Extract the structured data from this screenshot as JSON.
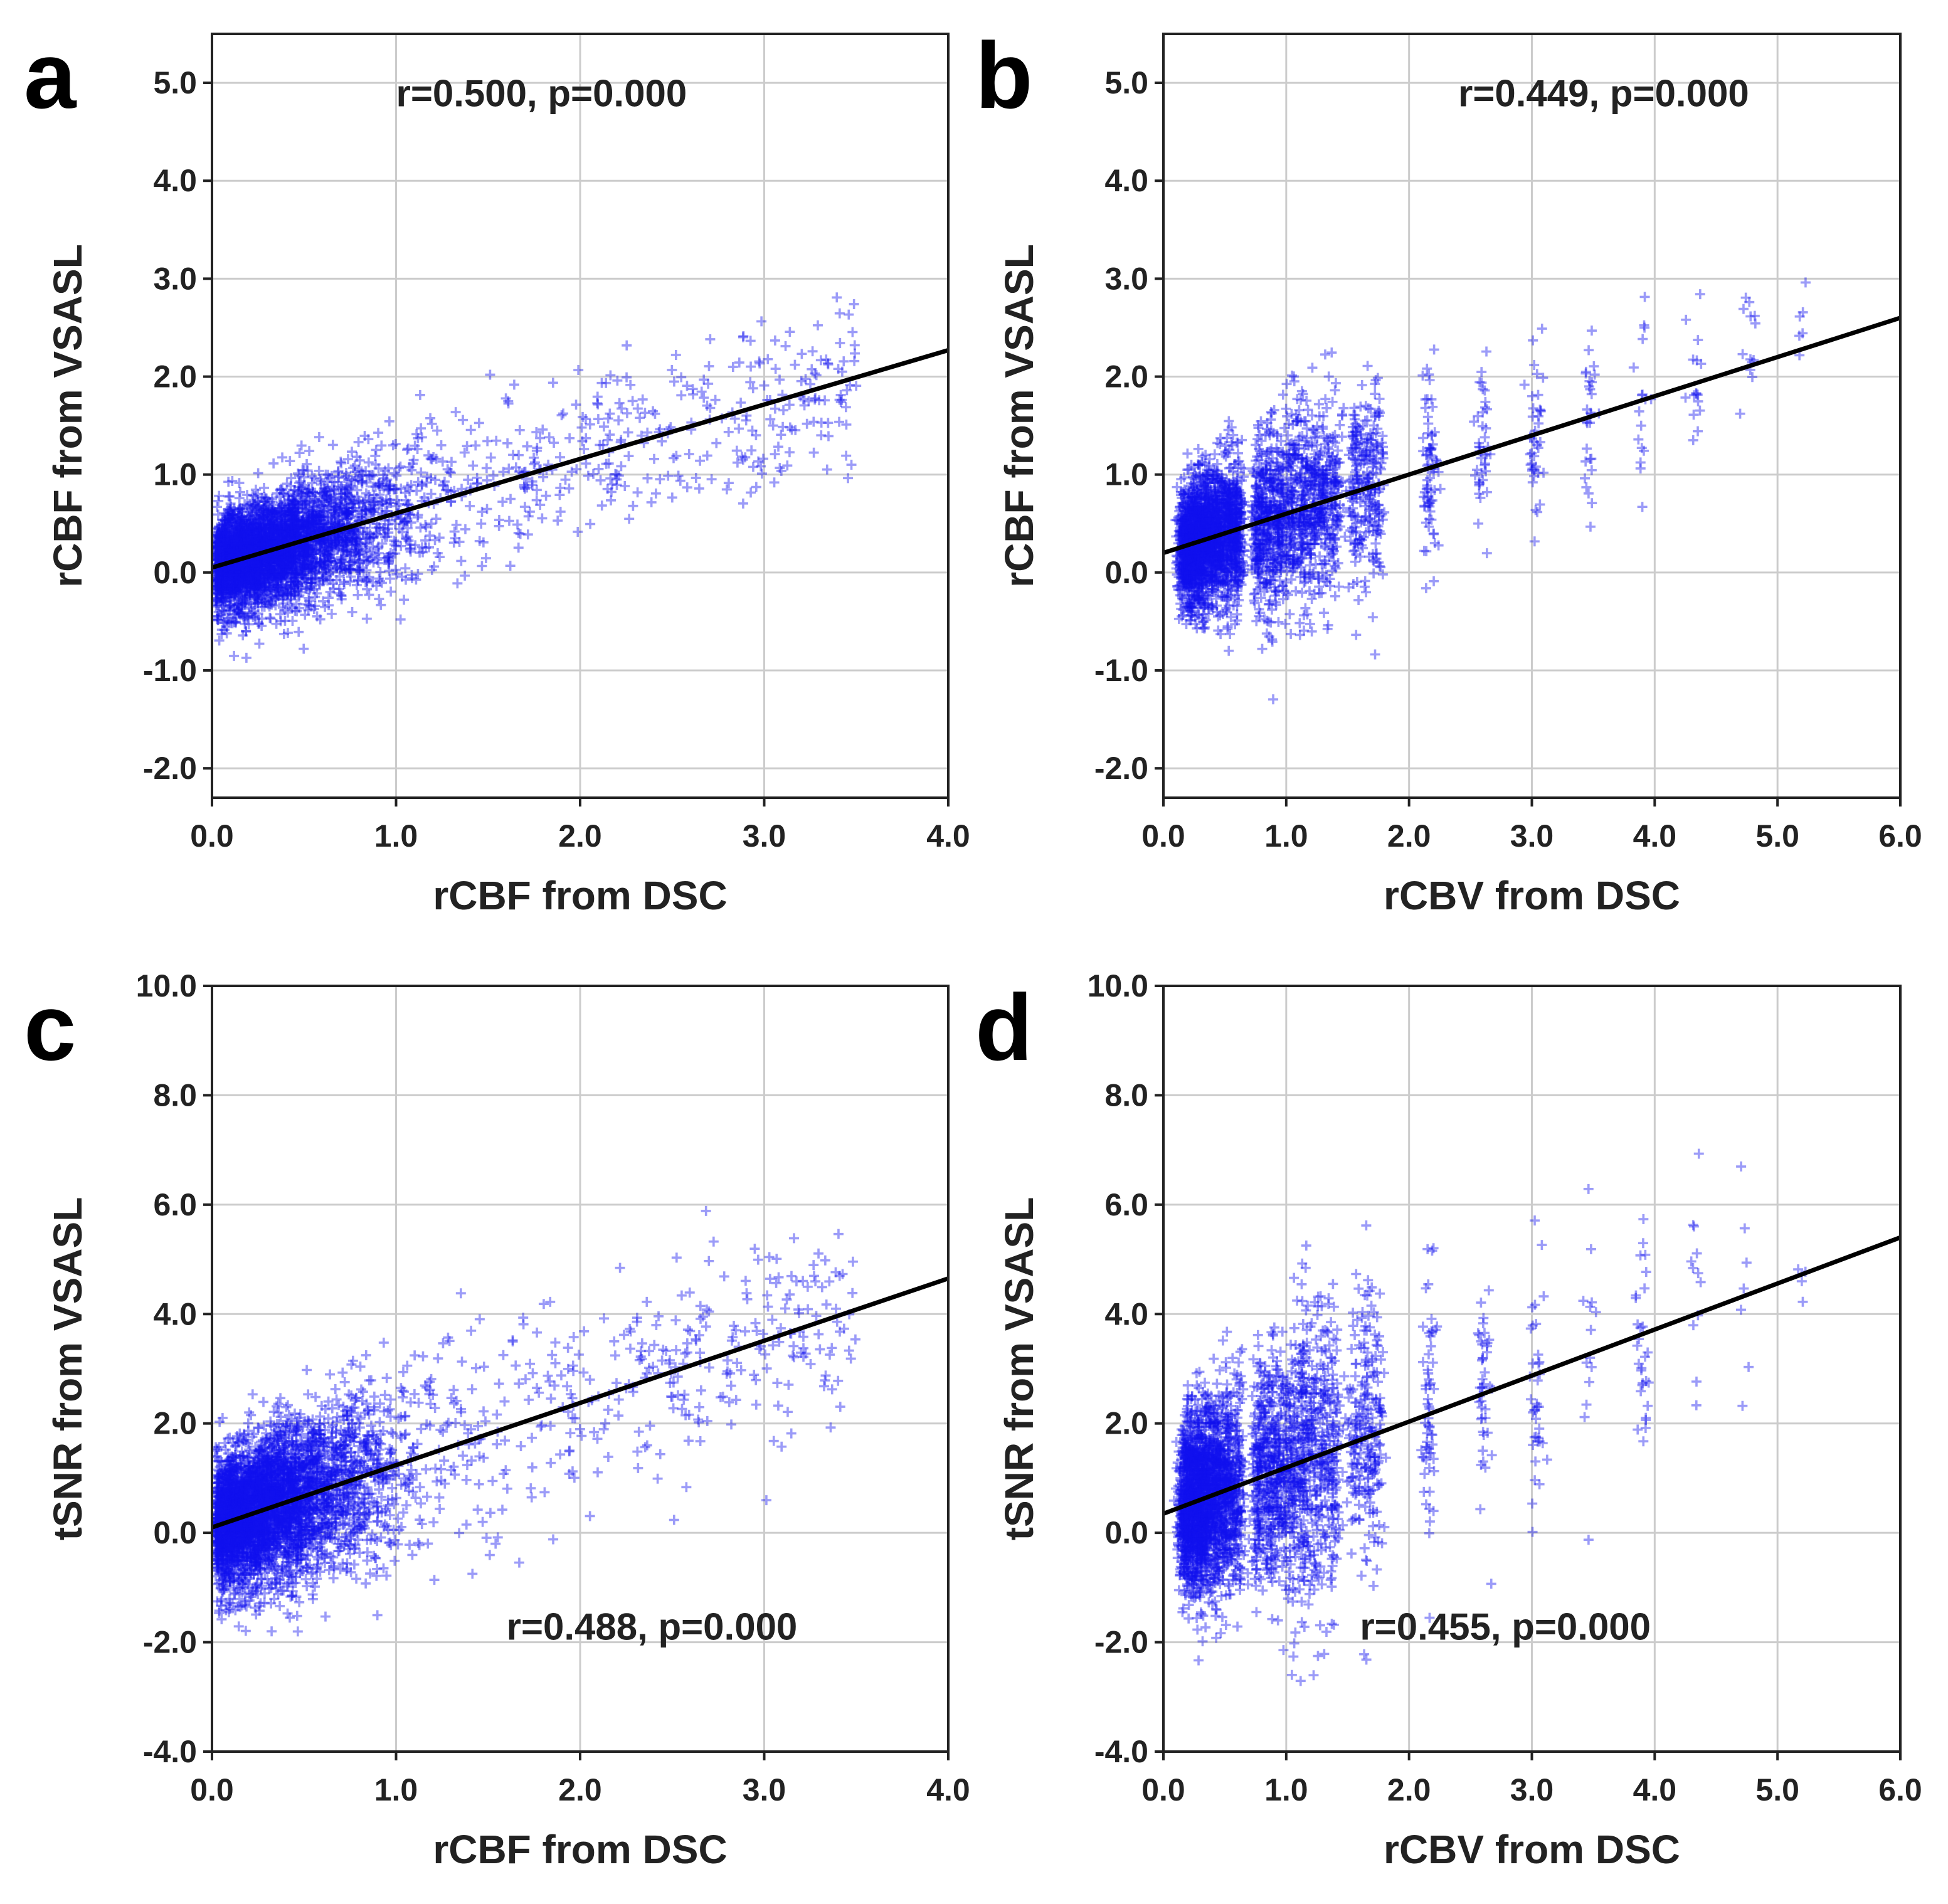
{
  "colors": {
    "points": "#1010ee",
    "fit": "#000000",
    "grid": "#cccccc",
    "frame": "#222222"
  },
  "chart_data": [
    {
      "panel": "a",
      "type": "scatter",
      "xlabel": "rCBF from DSC",
      "ylabel": "rCBF from VSASL",
      "xlim": [
        0,
        4
      ],
      "ylim": [
        -2.3,
        5.5
      ],
      "xticks": [
        0,
        1,
        2,
        3,
        4
      ],
      "xticklabels": [
        "0.0",
        "1.0",
        "2.0",
        "3.0",
        "4.0"
      ],
      "yticks": [
        -2,
        -1,
        0,
        1,
        2,
        3,
        4,
        5
      ],
      "yticklabels": [
        "-2.0",
        "-1.0",
        "0.0",
        "1.0",
        "2.0",
        "3.0",
        "4.0",
        "5.0"
      ],
      "annotation": "r=0.500, p=0.000",
      "annotation_pos": {
        "x": 1.0,
        "y": 4.9
      },
      "fit": {
        "x": [
          0,
          4
        ],
        "y": [
          0.05,
          2.27
        ]
      },
      "grid": true,
      "marker": "+",
      "scatter_model": {
        "n": 4200,
        "x_mode": "continuous",
        "x_min": 0.0,
        "x_max": 3.5,
        "x_scale": 0.42,
        "x_tail": 0.12,
        "intercept": 0.05,
        "slope": 0.55,
        "noise": 0.42,
        "y_clip": [
          -2.0,
          4.2
        ]
      }
    },
    {
      "panel": "b",
      "type": "scatter",
      "xlabel": "rCBV from DSC",
      "ylabel": "rCBF from VSASL",
      "xlim": [
        0,
        6
      ],
      "ylim": [
        -2.3,
        5.5
      ],
      "xticks": [
        0,
        1,
        2,
        3,
        4,
        5,
        6
      ],
      "xticklabels": [
        "0.0",
        "1.0",
        "2.0",
        "3.0",
        "4.0",
        "5.0",
        "6.0"
      ],
      "yticks": [
        -2,
        -1,
        0,
        1,
        2,
        3,
        4,
        5
      ],
      "yticklabels": [
        "-2.0",
        "-1.0",
        "0.0",
        "1.0",
        "2.0",
        "3.0",
        "4.0",
        "5.0"
      ],
      "annotation": "r=0.449, p=0.000",
      "annotation_pos": {
        "x": 2.4,
        "y": 4.9
      },
      "fit": {
        "x": [
          0,
          6
        ],
        "y": [
          0.2,
          2.6
        ]
      },
      "grid": true,
      "marker": "+",
      "scatter_model": {
        "n": 3800,
        "x_mode": "columns",
        "columns": [
          0.17,
          0.22,
          0.28,
          0.35,
          0.43,
          0.52,
          0.6,
          0.78,
          0.87,
          0.95,
          1.04,
          1.13,
          1.22,
          1.3,
          1.39,
          1.56,
          1.65,
          1.73,
          2.17,
          2.6,
          3.03,
          3.47,
          3.9,
          4.33,
          4.77,
          5.2
        ],
        "column_weights": [
          10,
          12,
          14,
          14,
          13,
          10,
          7,
          7,
          6,
          6,
          5,
          5,
          4,
          4,
          4,
          3,
          3,
          3,
          2.4,
          1.6,
          1.3,
          1.0,
          0.8,
          0.5,
          0.4,
          0.15
        ],
        "x_jitter": 0.03,
        "intercept": 0.2,
        "slope": 0.4,
        "noise": 0.5,
        "y_clip": [
          -2.0,
          4.2
        ]
      }
    },
    {
      "panel": "c",
      "type": "scatter",
      "xlabel": "rCBF from DSC",
      "ylabel": "tSNR from VSASL",
      "xlim": [
        0,
        4
      ],
      "ylim": [
        -4,
        10
      ],
      "xticks": [
        0,
        1,
        2,
        3,
        4
      ],
      "xticklabels": [
        "0.0",
        "1.0",
        "2.0",
        "3.0",
        "4.0"
      ],
      "yticks": [
        -4,
        -2,
        0,
        2,
        4,
        6,
        8,
        10
      ],
      "yticklabels": [
        "-4.0",
        "-2.0",
        "0.0",
        "2.0",
        "4.0",
        "6.0",
        "8.0",
        "10.0"
      ],
      "annotation": "r=0.488, p=0.000",
      "annotation_pos": {
        "x": 1.6,
        "y": -1.7
      },
      "fit": {
        "x": [
          0,
          4
        ],
        "y": [
          0.1,
          4.65
        ]
      },
      "grid": true,
      "marker": "+",
      "scatter_model": {
        "n": 4200,
        "x_mode": "continuous",
        "x_min": 0.0,
        "x_max": 3.5,
        "x_scale": 0.42,
        "x_tail": 0.12,
        "intercept": 0.1,
        "slope": 1.14,
        "noise": 1.05,
        "y_clip": [
          -3.3,
          7.6
        ]
      }
    },
    {
      "panel": "d",
      "type": "scatter",
      "xlabel": "rCBV from DSC",
      "ylabel": "tSNR from VSASL",
      "xlim": [
        0,
        6
      ],
      "ylim": [
        -4,
        10
      ],
      "xticks": [
        0,
        1,
        2,
        3,
        4,
        5,
        6
      ],
      "xticklabels": [
        "0.0",
        "1.0",
        "2.0",
        "3.0",
        "4.0",
        "5.0",
        "6.0"
      ],
      "yticks": [
        -4,
        -2,
        0,
        2,
        4,
        6,
        8,
        10
      ],
      "yticklabels": [
        "-4.0",
        "-2.0",
        "0.0",
        "2.0",
        "4.0",
        "6.0",
        "8.0",
        "10.0"
      ],
      "annotation": "r=0.455, p=0.000",
      "annotation_pos": {
        "x": 1.6,
        "y": -1.7
      },
      "fit": {
        "x": [
          0,
          6
        ],
        "y": [
          0.35,
          5.4
        ]
      },
      "grid": true,
      "marker": "+",
      "scatter_model": {
        "n": 3800,
        "x_mode": "columns",
        "columns": [
          0.17,
          0.22,
          0.28,
          0.35,
          0.43,
          0.52,
          0.6,
          0.78,
          0.87,
          0.95,
          1.04,
          1.13,
          1.22,
          1.3,
          1.39,
          1.56,
          1.65,
          1.73,
          2.17,
          2.6,
          3.03,
          3.47,
          3.9,
          4.33,
          4.77,
          5.2
        ],
        "column_weights": [
          10,
          12,
          14,
          14,
          13,
          10,
          7,
          7,
          6,
          6,
          5,
          5,
          4,
          4,
          4,
          3,
          3,
          3,
          2.4,
          1.6,
          1.3,
          1.0,
          0.8,
          0.5,
          0.4,
          0.15
        ],
        "x_jitter": 0.03,
        "intercept": 0.35,
        "slope": 0.84,
        "noise": 1.25,
        "y_clip": [
          -3.3,
          7.6
        ]
      }
    }
  ]
}
